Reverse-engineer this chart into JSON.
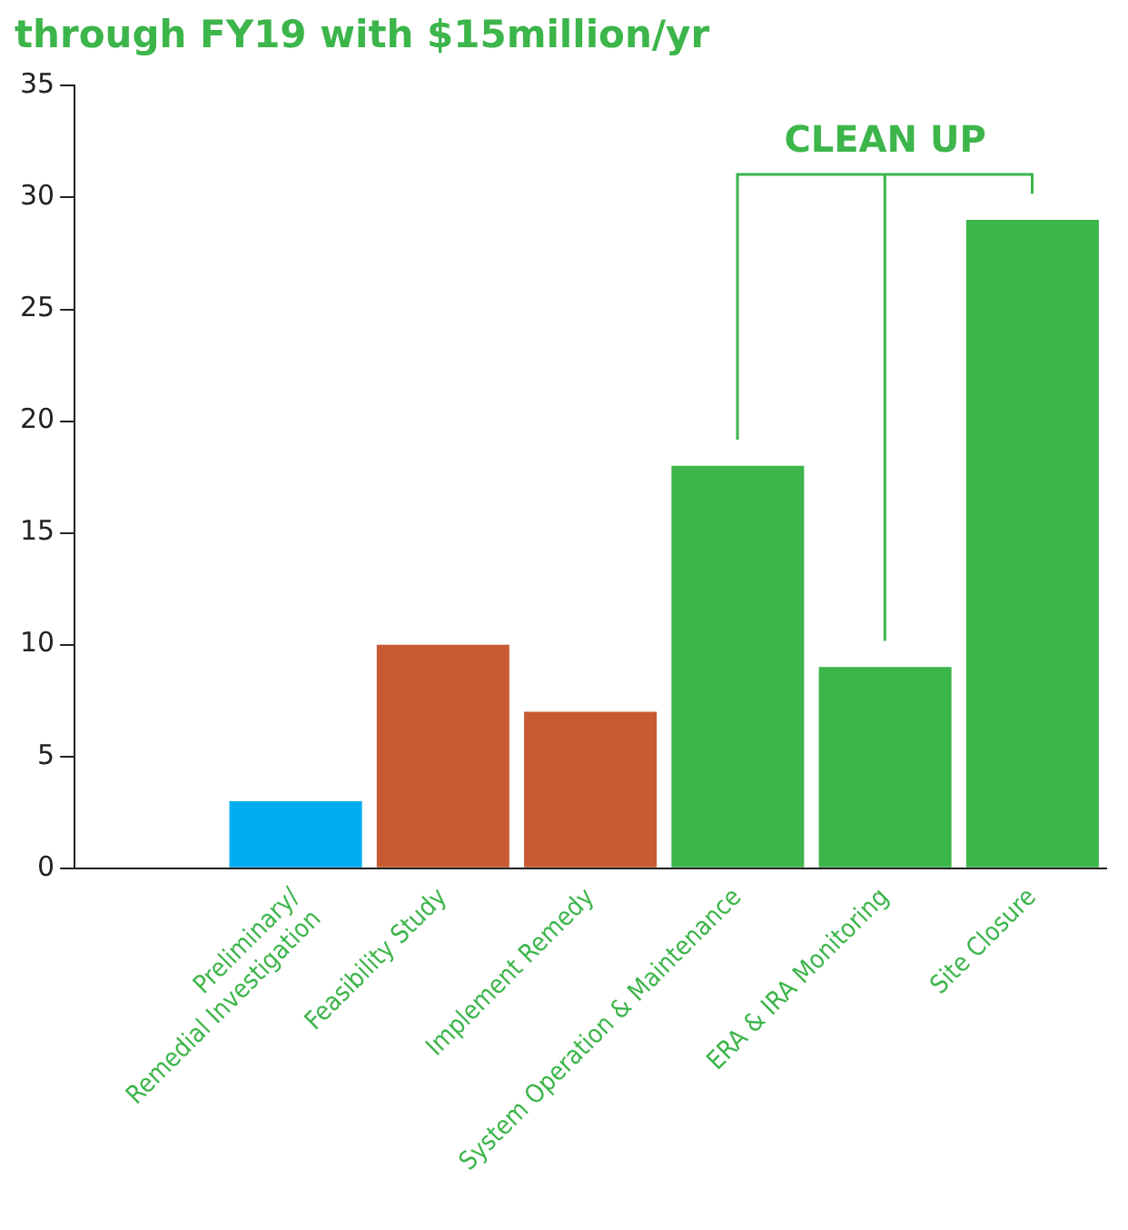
{
  "chart_data": {
    "type": "bar",
    "title": "through FY19 with $15million/yr",
    "categories": [
      null,
      "Preliminary/\nRemedial Investigation",
      "Feasibility Study",
      "Implement Remedy",
      "System Operation & Maintenance",
      "ERA & IRA Monitoring",
      "Site Closure"
    ],
    "values": [
      null,
      3,
      10,
      7,
      18,
      9,
      29
    ],
    "colors": [
      "#3cb54a",
      "#00aeef",
      "#c85a32",
      "#c85a32",
      "#3cb54a",
      "#3cb54a",
      "#3cb54a"
    ],
    "ylim": [
      0,
      35
    ],
    "yticks": [
      0,
      5,
      10,
      15,
      20,
      25,
      30,
      35
    ],
    "grid": false,
    "legend": false,
    "annotations": [
      "CLEAN UP"
    ]
  }
}
